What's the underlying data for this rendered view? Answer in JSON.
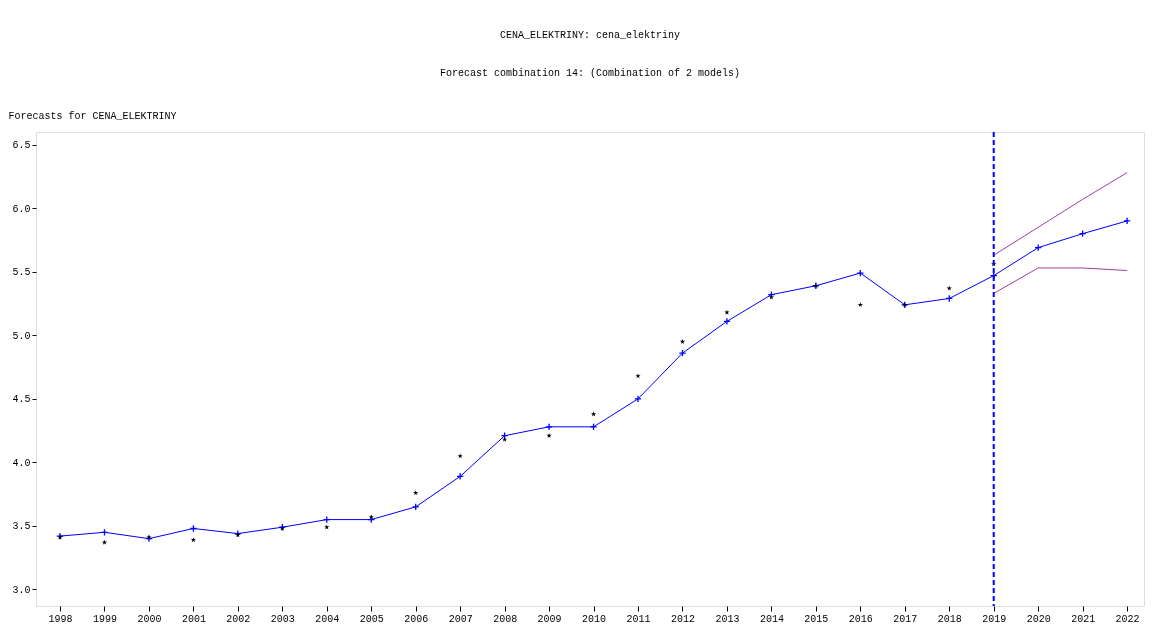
{
  "chart_data": {
    "type": "line",
    "title": "CENA_ELEKTRINY: cena_elektriny",
    "subtitle": "Forecast combination 14: (Combination of 2 models)",
    "ylabel": "Forecasts for CENA_ELEKTRINY",
    "categories": [
      "1998",
      "1999",
      "2000",
      "2001",
      "2002",
      "2003",
      "2004",
      "2005",
      "2006",
      "2007",
      "2008",
      "2009",
      "2010",
      "2011",
      "2012",
      "2013",
      "2014",
      "2015",
      "2016",
      "2017",
      "2018",
      "2019",
      "2020",
      "2021",
      "2022"
    ],
    "series": [
      {
        "marker": "cross",
        "color": "#0000ff",
        "values": [
          3.42,
          3.45,
          3.4,
          3.48,
          3.44,
          3.49,
          3.55,
          3.55,
          3.65,
          3.89,
          4.21,
          4.28,
          4.28,
          4.5,
          4.86,
          5.11,
          5.32,
          5.39,
          5.49,
          5.24,
          5.29,
          5.47,
          5.69,
          5.8,
          5.9
        ]
      },
      {
        "type": "scatter",
        "marker": "star",
        "color": "#000000",
        "values": [
          3.41,
          3.37,
          3.41,
          3.39,
          3.43,
          3.48,
          3.49,
          3.57,
          3.76,
          4.05,
          4.18,
          4.21,
          4.38,
          4.68,
          4.95,
          5.18,
          5.3,
          5.39,
          5.24,
          5.24,
          5.37,
          5.56,
          null,
          null,
          null
        ]
      },
      {
        "marker": "none",
        "color": "#a040a0",
        "values": [
          null,
          null,
          null,
          null,
          null,
          null,
          null,
          null,
          null,
          null,
          null,
          null,
          null,
          null,
          null,
          null,
          null,
          null,
          null,
          null,
          null,
          5.63,
          5.85,
          6.07,
          6.28
        ]
      },
      {
        "marker": "none",
        "color": "#a040a0",
        "values": [
          null,
          null,
          null,
          null,
          null,
          null,
          null,
          null,
          null,
          null,
          null,
          null,
          null,
          null,
          null,
          null,
          null,
          null,
          null,
          null,
          null,
          5.33,
          5.53,
          5.53,
          5.51
        ]
      }
    ],
    "ylim": [
      2.87,
      6.6
    ],
    "yticks": [
      {
        "value": 3,
        "label": "3.0"
      },
      {
        "value": 3.5,
        "label": "3.5"
      },
      {
        "value": 4,
        "label": "4.0"
      },
      {
        "value": 4.5,
        "label": "4.5"
      },
      {
        "value": 5,
        "label": "5.0"
      },
      {
        "value": 5.5,
        "label": "5.5"
      },
      {
        "value": 6,
        "label": "6.0"
      },
      {
        "value": 6.5,
        "label": "6.5"
      }
    ],
    "ref_lines": [
      {
        "axis": "x",
        "value": "2019",
        "color": "#0000ff",
        "line_style": "dashed"
      }
    ],
    "grid": false
  }
}
